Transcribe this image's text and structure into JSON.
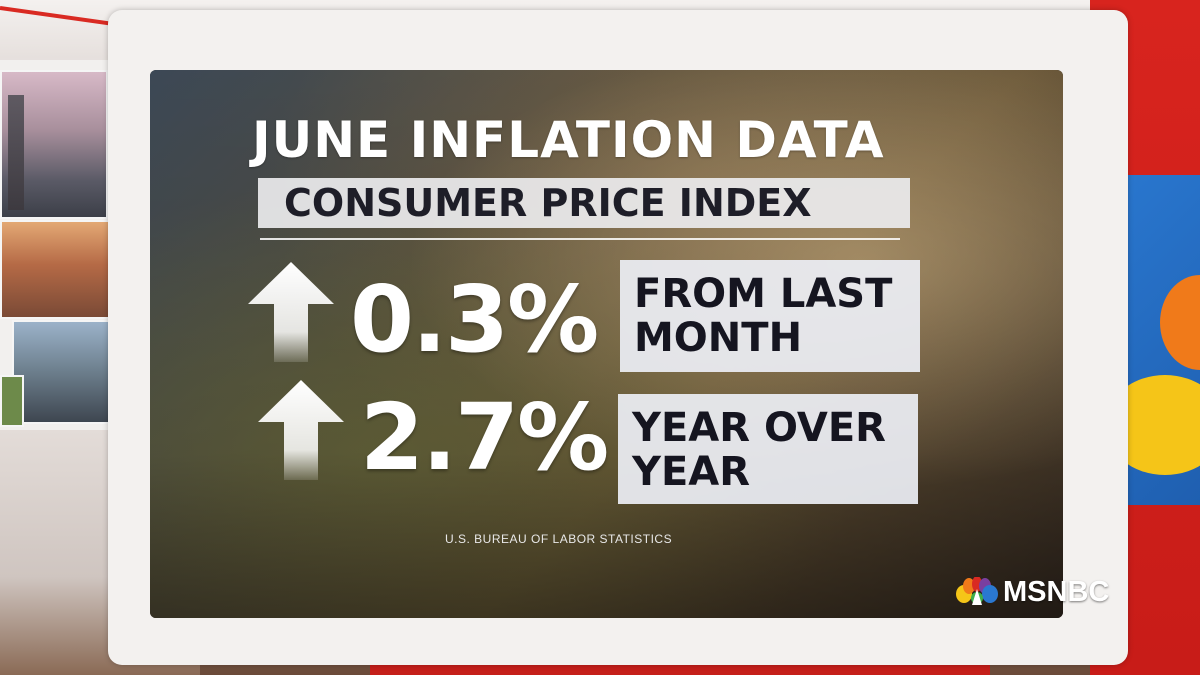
{
  "screen": {
    "title": "JUNE INFLATION DATA",
    "subtitle": "CONSUMER PRICE INDEX",
    "stats": [
      {
        "value": "0.3%",
        "label": "FROM LAST\nMONTH",
        "direction": "up-arrow-icon"
      },
      {
        "value": "2.7%",
        "label": "YEAR OVER\nYEAR",
        "direction": "up-arrow-icon"
      }
    ],
    "source": "U.S. BUREAU OF LABOR STATISTICS"
  },
  "logo": {
    "text": "MSNBC",
    "icon": "peacock-icon",
    "colors": [
      "#f5c518",
      "#f07a1a",
      "#d92a22",
      "#7a3fa0",
      "#2a78d0",
      "#3fae49"
    ]
  },
  "colors": {
    "studio_red": "#c81c18",
    "panel_text": "#151520",
    "panel_bg": "#eceef4"
  }
}
